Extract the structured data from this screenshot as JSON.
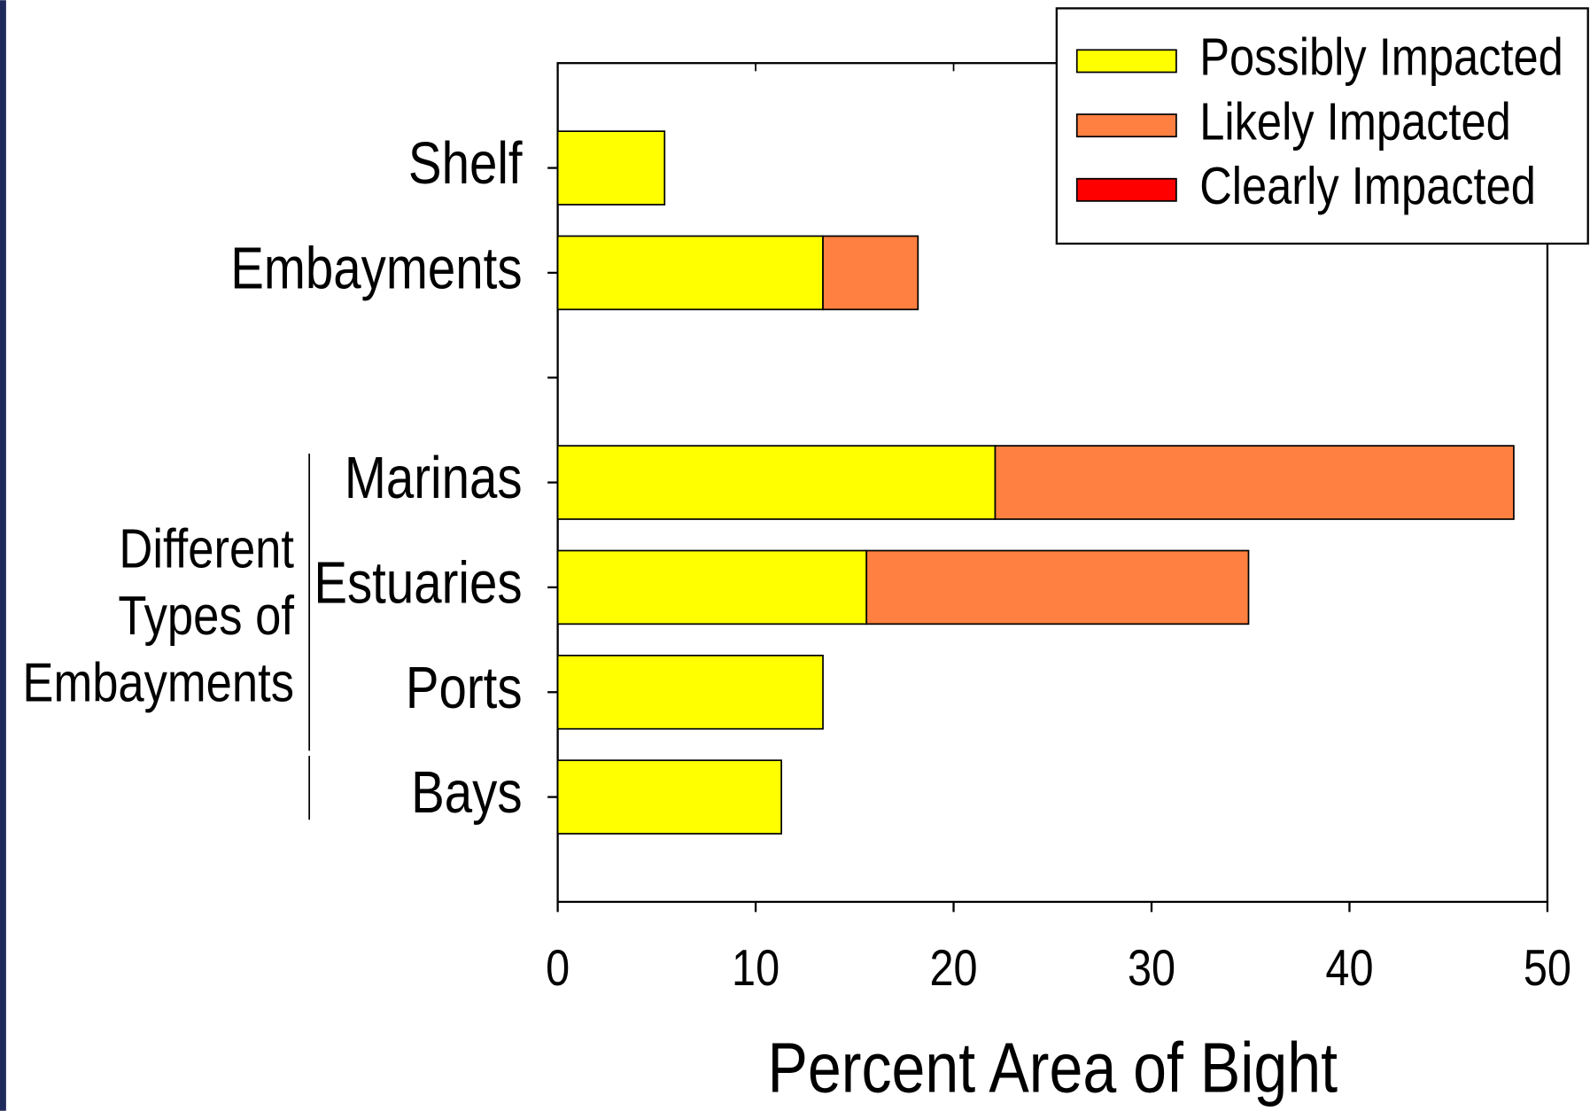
{
  "chart_data": {
    "type": "stacked_barh",
    "categories": [
      "Shelf",
      "Embayments",
      null,
      "Marinas",
      "Estuaries",
      "Ports",
      "Bays"
    ],
    "series": [
      {
        "name": "Possibly Impacted",
        "color": "#ffff00",
        "values": [
          5.4,
          13.4,
          null,
          22.1,
          15.6,
          13.4,
          11.3
        ]
      },
      {
        "name": "Likely Impacted",
        "color": "#ff8040",
        "values": [
          0,
          4.8,
          null,
          26.2,
          19.3,
          0,
          0
        ]
      },
      {
        "name": "Clearly Impacted",
        "color": "#ff0000",
        "values": [
          0,
          0,
          null,
          0,
          0,
          0,
          0
        ]
      }
    ],
    "xlabel": "Percent Area of Bight",
    "annotation": [
      "Different",
      "Types of",
      "Embayments"
    ],
    "xlim": [
      0,
      50
    ],
    "xticks": [
      0,
      10,
      20,
      30,
      40,
      50
    ],
    "legend": "top-right"
  }
}
